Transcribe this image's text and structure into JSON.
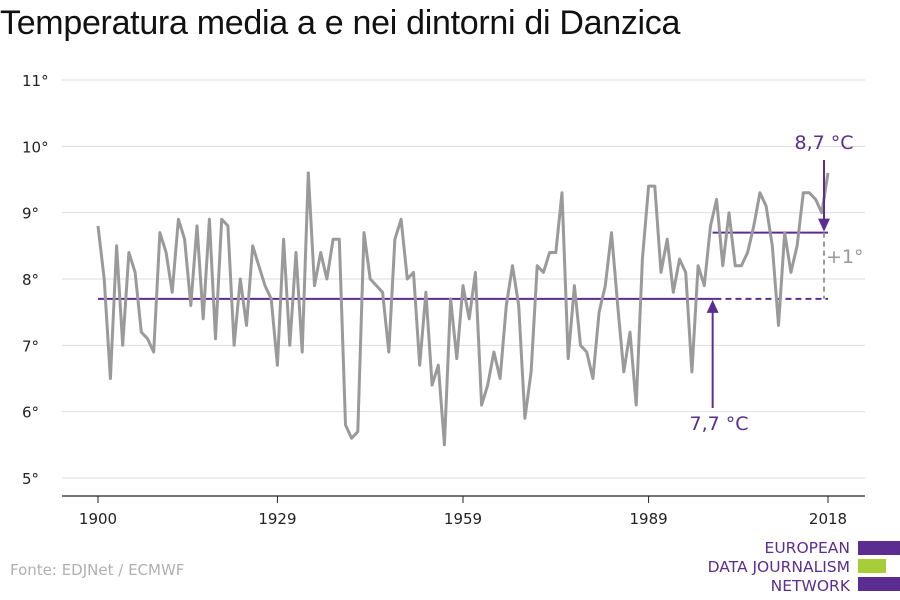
{
  "title": "Temperatura media a e nei dintorni di Danzica",
  "source": "Fonte: EDJNet / ECMWF",
  "logo": {
    "lines": [
      "EUROPEAN",
      "DATA JOURNALISM",
      "NETWORK"
    ]
  },
  "colors": {
    "series": "#9a9a9a",
    "accent": "#5c2d91",
    "logo_green": "#a6ce39",
    "grid": "#dddddd"
  },
  "chart_data": {
    "type": "line",
    "title": "Temperatura media a e nei dintorni di Danzica",
    "xlabel": "",
    "ylabel": "",
    "xlim": [
      1900,
      2018
    ],
    "ylim": [
      5,
      11
    ],
    "xticks": [
      1900,
      1929,
      1959,
      1989,
      2018
    ],
    "xtick_labels": [
      "1900",
      "1929",
      "1959",
      "1989",
      "2018"
    ],
    "yticks": [
      5,
      6,
      7,
      8,
      9,
      10,
      11
    ],
    "ytick_labels": [
      "5°",
      "6°",
      "7°",
      "8°",
      "9°",
      "10°",
      "11°"
    ],
    "grid": "horizontal",
    "series": [
      {
        "x": [
          1900,
          1901,
          1902,
          1903,
          1904,
          1905,
          1906,
          1907,
          1908,
          1909,
          1910,
          1911,
          1912,
          1913,
          1914,
          1915,
          1916,
          1917,
          1918,
          1919,
          1920,
          1921,
          1922,
          1923,
          1924,
          1925,
          1926,
          1927,
          1928,
          1929,
          1930,
          1931,
          1932,
          1933,
          1934,
          1935,
          1936,
          1937,
          1938,
          1939,
          1940,
          1941,
          1942,
          1943,
          1944,
          1945,
          1946,
          1947,
          1948,
          1949,
          1950,
          1951,
          1952,
          1953,
          1954,
          1955,
          1956,
          1957,
          1958,
          1959,
          1960,
          1961,
          1962,
          1963,
          1964,
          1965,
          1966,
          1967,
          1968,
          1969,
          1970,
          1971,
          1972,
          1973,
          1974,
          1975,
          1976,
          1977,
          1978,
          1979,
          1980,
          1981,
          1982,
          1983,
          1984,
          1985,
          1986,
          1987,
          1988,
          1989,
          1990,
          1991,
          1992,
          1993,
          1994,
          1995,
          1996,
          1997,
          1998,
          1999,
          2000,
          2001,
          2002,
          2003,
          2004,
          2005,
          2006,
          2007,
          2008,
          2009,
          2010,
          2011,
          2012,
          2013,
          2014,
          2015,
          2016,
          2017,
          2018
        ],
        "values": [
          8.8,
          8.0,
          6.5,
          8.5,
          7.0,
          8.4,
          8.1,
          7.2,
          7.1,
          6.9,
          8.7,
          8.4,
          7.8,
          8.9,
          8.6,
          7.6,
          8.8,
          7.4,
          8.9,
          7.1,
          8.9,
          8.8,
          7.0,
          8.0,
          7.3,
          8.5,
          8.2,
          7.9,
          7.7,
          6.7,
          8.6,
          7.0,
          8.4,
          6.9,
          9.6,
          7.9,
          8.4,
          8.0,
          8.6,
          8.6,
          5.8,
          5.6,
          5.7,
          8.7,
          8.0,
          7.9,
          7.8,
          6.9,
          8.6,
          8.9,
          8.0,
          8.1,
          6.7,
          7.8,
          6.4,
          6.7,
          5.5,
          7.7,
          6.8,
          7.9,
          7.4,
          8.1,
          6.1,
          6.4,
          6.9,
          6.5,
          7.6,
          8.2,
          7.6,
          5.9,
          6.6,
          8.2,
          8.1,
          8.4,
          8.4,
          9.3,
          6.8,
          7.9,
          7.0,
          6.9,
          6.5,
          7.5,
          7.9,
          8.7,
          7.6,
          6.6,
          7.2,
          6.1,
          8.3,
          9.4,
          9.4,
          8.1,
          8.6,
          7.8,
          8.3,
          8.1,
          6.6,
          8.2,
          7.9,
          8.8,
          9.2,
          8.2,
          9.0,
          8.2,
          8.2,
          8.4,
          8.8,
          9.3,
          9.1,
          8.5,
          7.3,
          8.7,
          8.1,
          8.5,
          9.3,
          9.3,
          9.2,
          9.0,
          9.6
        ]
      }
    ],
    "reference_lines": [
      {
        "label": "7,7 °C",
        "value": 7.7,
        "x_start": 1900,
        "x_end": 2018,
        "solid_until": 1999
      },
      {
        "label": "8,7 °C",
        "value": 8.7,
        "x_start": 2000,
        "x_end": 2018
      }
    ],
    "annotations": [
      {
        "text": "8,7 °C"
      },
      {
        "text": "7,7 °C"
      },
      {
        "text": "+1°"
      }
    ]
  }
}
